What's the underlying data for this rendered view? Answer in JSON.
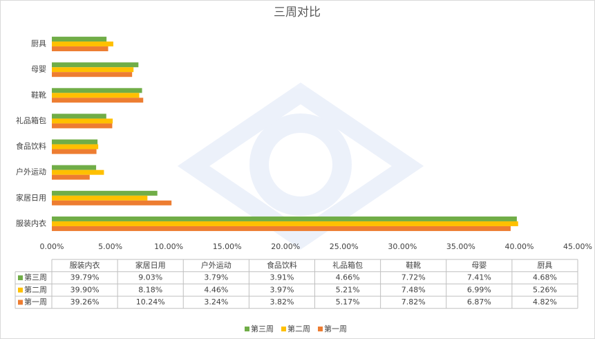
{
  "chart_data": {
    "type": "bar",
    "orientation": "horizontal",
    "title": "三周对比",
    "categories": [
      "服装内衣",
      "家居日用",
      "户外运动",
      "食品饮料",
      "礼品箱包",
      "鞋靴",
      "母婴",
      "厨具"
    ],
    "series": [
      {
        "name": "第三周",
        "color": "#70ad47",
        "values": [
          39.79,
          9.03,
          3.79,
          3.91,
          4.66,
          7.72,
          7.41,
          4.68
        ],
        "value_labels": [
          "39.79%",
          "9.03%",
          "3.79%",
          "3.91%",
          "4.66%",
          "7.72%",
          "7.41%",
          "4.68%"
        ]
      },
      {
        "name": "第二周",
        "color": "#ffc000",
        "values": [
          39.9,
          8.18,
          4.46,
          3.97,
          5.21,
          7.48,
          6.99,
          5.26
        ],
        "value_labels": [
          "39.90%",
          "8.18%",
          "4.46%",
          "3.97%",
          "5.21%",
          "7.48%",
          "6.99%",
          "5.26%"
        ]
      },
      {
        "name": "第一周",
        "color": "#ed7d31",
        "values": [
          39.26,
          10.24,
          3.24,
          3.82,
          5.17,
          7.82,
          6.87,
          4.82
        ],
        "value_labels": [
          "39.26%",
          "10.24%",
          "3.24%",
          "3.82%",
          "5.17%",
          "7.82%",
          "6.87%",
          "4.82%"
        ]
      }
    ],
    "xlim": [
      0,
      45
    ],
    "xticks": [
      {
        "value": 0,
        "label": "0.00%"
      },
      {
        "value": 5,
        "label": "5.00%"
      },
      {
        "value": 10,
        "label": "10.00%"
      },
      {
        "value": 15,
        "label": "15.00%"
      },
      {
        "value": 20,
        "label": "20.00%"
      },
      {
        "value": 25,
        "label": "25.00%"
      },
      {
        "value": 30,
        "label": "30.00%"
      },
      {
        "value": 35,
        "label": "35.00%"
      },
      {
        "value": 40,
        "label": "40.00%"
      },
      {
        "value": 45,
        "label": "45.00%"
      }
    ],
    "grid": false,
    "data_table": true,
    "legend": "bottom"
  }
}
